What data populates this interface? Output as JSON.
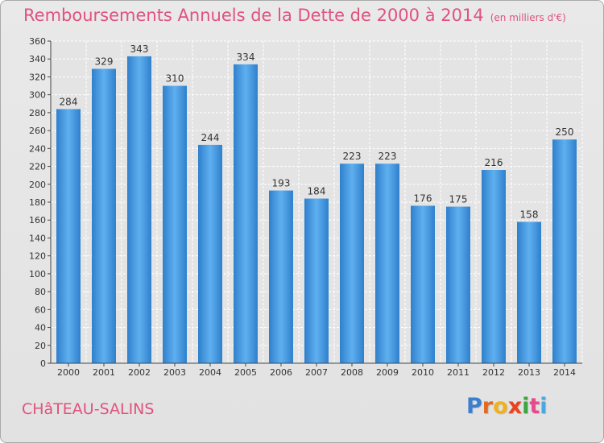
{
  "chart_data": {
    "type": "bar",
    "title": "Remboursements Annuels de la Dette de 2000 à 2014",
    "subtitle": "(en milliers d'€)",
    "categories": [
      "2000",
      "2001",
      "2002",
      "2003",
      "2004",
      "2005",
      "2006",
      "2007",
      "2008",
      "2009",
      "2010",
      "2011",
      "2012",
      "2013",
      "2014"
    ],
    "values": [
      284,
      329,
      343,
      310,
      244,
      334,
      193,
      184,
      223,
      223,
      176,
      175,
      216,
      158,
      250
    ],
    "ylim": [
      0,
      360
    ],
    "yticks": [
      0,
      20,
      40,
      60,
      80,
      100,
      120,
      140,
      160,
      180,
      200,
      220,
      240,
      260,
      280,
      300,
      320,
      340,
      360
    ],
    "grid": true,
    "bar_color": "#3d8fd6"
  },
  "commune": "CHâTEAU-SALINS",
  "logo": {
    "letters": [
      "P",
      "r",
      "o",
      "x",
      "i",
      "t",
      "i"
    ],
    "colors": [
      "#3a7fd0",
      "#e26a1f",
      "#f0b21a",
      "#e8421f",
      "#3aa63e",
      "#e84a8c",
      "#4aa8e0"
    ]
  }
}
